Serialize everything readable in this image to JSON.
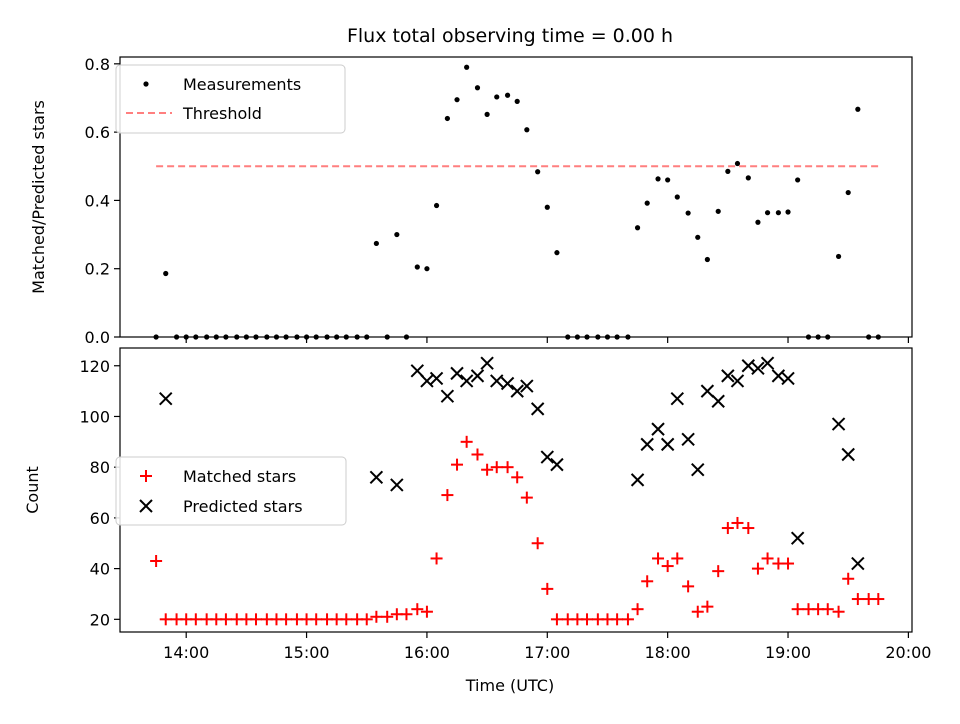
{
  "chart_data": [
    {
      "type": "scatter",
      "title": "Flux total observing time = 0.00 h",
      "xlabel": "",
      "ylabel": "Matched/Predicted stars",
      "ylim": [
        0,
        0.82
      ],
      "yticks": [
        "0.0",
        "0.2",
        "0.4",
        "0.6",
        "0.8"
      ],
      "ytick_values": [
        0,
        0.2,
        0.4,
        0.6,
        0.8
      ],
      "legend_position": "top-left",
      "series": [
        {
          "name": "Measurements",
          "marker": "dot",
          "color": "#000000",
          "x": [
            13.75,
            13.83,
            13.92,
            14.0,
            14.08,
            14.17,
            14.25,
            14.33,
            14.42,
            14.5,
            14.58,
            14.67,
            14.75,
            14.83,
            14.92,
            15.0,
            15.08,
            15.17,
            15.25,
            15.33,
            15.42,
            15.5,
            15.58,
            15.67,
            15.75,
            15.83,
            15.92,
            16.0,
            16.08,
            16.17,
            16.25,
            16.33,
            16.42,
            16.5,
            16.58,
            16.67,
            16.75,
            16.83,
            16.92,
            17.0,
            17.08,
            17.17,
            17.25,
            17.33,
            17.42,
            17.5,
            17.58,
            17.67,
            17.75,
            17.83,
            17.92,
            18.0,
            18.08,
            18.17,
            18.25,
            18.33,
            18.42,
            18.5,
            18.58,
            18.67,
            18.75,
            18.83,
            18.92,
            19.0,
            19.08,
            19.17,
            19.25,
            19.33,
            19.42,
            19.5,
            19.58,
            19.67,
            19.75
          ],
          "y": [
            0.0,
            0.186,
            0.0,
            0.0,
            0.0,
            0.0,
            0.0,
            0.0,
            0.0,
            0.0,
            0.0,
            0.0,
            0.0,
            0.0,
            0.0,
            0.0,
            0.0,
            0.0,
            0.0,
            0.0,
            0.0,
            0.0,
            0.274,
            0.0,
            0.3,
            0.0,
            0.205,
            0.2,
            0.385,
            0.64,
            0.695,
            0.79,
            0.73,
            0.652,
            0.703,
            0.708,
            0.69,
            0.607,
            0.484,
            0.38,
            0.247,
            0.0,
            0.0,
            0.0,
            0.0,
            0.0,
            0.0,
            0.0,
            0.32,
            0.392,
            0.463,
            0.46,
            0.41,
            0.363,
            0.292,
            0.227,
            0.368,
            0.485,
            0.508,
            0.466,
            0.336,
            0.364,
            0.364,
            0.366,
            0.46,
            0.0,
            0.0,
            0.0,
            0.236,
            0.423,
            0.667,
            0.0,
            0.0
          ]
        },
        {
          "name": "Threshold",
          "style": "dashed",
          "color": "#ff7f7f",
          "x": [
            13.75,
            19.75
          ],
          "y": [
            0.5,
            0.5
          ]
        }
      ]
    },
    {
      "type": "scatter",
      "title": "",
      "xlabel": "Time (UTC)",
      "ylabel": "Count",
      "ylim": [
        15,
        127
      ],
      "yticks": [
        "20",
        "40",
        "60",
        "80",
        "100",
        "120"
      ],
      "ytick_values": [
        20,
        40,
        60,
        80,
        100,
        120
      ],
      "xlim": [
        13.45,
        20.03
      ],
      "xticks": [
        "14:00",
        "15:00",
        "16:00",
        "17:00",
        "18:00",
        "19:00",
        "20:00"
      ],
      "xtick_values": [
        14,
        15,
        16,
        17,
        18,
        19,
        20
      ],
      "legend_position": "center-left",
      "series": [
        {
          "name": "Matched stars",
          "marker": "plus",
          "color": "#ff0000",
          "x": [
            13.75,
            13.83,
            13.92,
            14.0,
            14.08,
            14.17,
            14.25,
            14.33,
            14.42,
            14.5,
            14.58,
            14.67,
            14.75,
            14.83,
            14.92,
            15.0,
            15.08,
            15.17,
            15.25,
            15.33,
            15.42,
            15.5,
            15.58,
            15.67,
            15.75,
            15.83,
            15.92,
            16.0,
            16.08,
            16.17,
            16.25,
            16.33,
            16.42,
            16.5,
            16.58,
            16.67,
            16.75,
            16.83,
            16.92,
            17.0,
            17.08,
            17.17,
            17.25,
            17.33,
            17.42,
            17.5,
            17.58,
            17.67,
            17.75,
            17.83,
            17.92,
            18.0,
            18.08,
            18.17,
            18.25,
            18.33,
            18.42,
            18.5,
            18.58,
            18.67,
            18.75,
            18.83,
            18.92,
            19.0,
            19.08,
            19.17,
            19.25,
            19.33,
            19.42,
            19.5,
            19.58,
            19.67,
            19.75
          ],
          "y": [
            43,
            20,
            20,
            20,
            20,
            20,
            20,
            20,
            20,
            20,
            20,
            20,
            20,
            20,
            20,
            20,
            20,
            20,
            20,
            20,
            20,
            20,
            21,
            21,
            22,
            22,
            24,
            23,
            44,
            69,
            81,
            90,
            85,
            79,
            80,
            80,
            76,
            68,
            50,
            32,
            20,
            20,
            20,
            20,
            20,
            20,
            20,
            20,
            24,
            35,
            44,
            41,
            44,
            33,
            23,
            25,
            39,
            56,
            58,
            56,
            40,
            44,
            42,
            42,
            24,
            24,
            24,
            24,
            23,
            36,
            28,
            28,
            28
          ]
        },
        {
          "name": "Predicted stars",
          "marker": "x",
          "color": "#000000",
          "x": [
            13.83,
            15.58,
            15.75,
            15.92,
            16.0,
            16.08,
            16.17,
            16.25,
            16.33,
            16.42,
            16.5,
            16.58,
            16.67,
            16.75,
            16.83,
            16.92,
            17.0,
            17.08,
            17.75,
            17.83,
            17.92,
            18.0,
            18.08,
            18.17,
            18.25,
            18.33,
            18.42,
            18.5,
            18.58,
            18.67,
            18.75,
            18.83,
            18.92,
            19.0,
            19.08,
            19.42,
            19.5,
            19.58
          ],
          "y": [
            107,
            76,
            73,
            118,
            114,
            115,
            108,
            117,
            114,
            116,
            121,
            114,
            113,
            110,
            112,
            103,
            84,
            81,
            75,
            89,
            95,
            89,
            107,
            91,
            79,
            110,
            106,
            116,
            114,
            120,
            119,
            121,
            116,
            115,
            52,
            97,
            85,
            42
          ]
        }
      ]
    }
  ]
}
